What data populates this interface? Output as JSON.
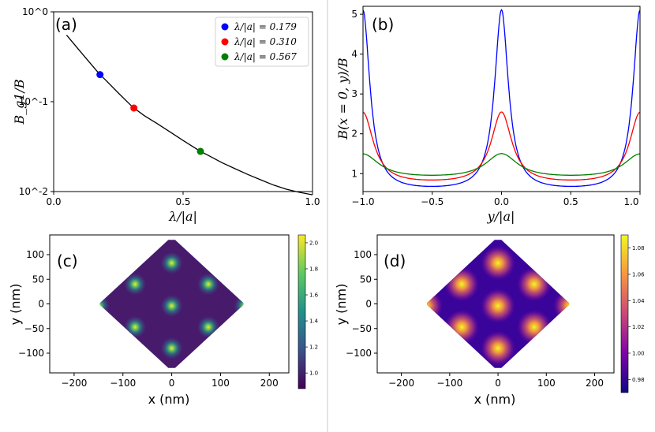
{
  "chart_data": [
    {
      "id": "a",
      "type": "line",
      "panel_label": "(a)",
      "xlabel": "λ/|a|",
      "ylabel": "B_g1/B",
      "yscale": "log",
      "xlim": [
        0.0,
        1.0
      ],
      "ylim": [
        0.01,
        1.0
      ],
      "xticks": [
        "0.0",
        "0.5",
        "1.0"
      ],
      "xtick_values": [
        0.0,
        0.5,
        1.0
      ],
      "yticks": [
        "10^0",
        "10^-1",
        "10^-2"
      ],
      "ytick_values": [
        1.0,
        0.1,
        0.01
      ],
      "curve": {
        "x": [
          0.05,
          0.1,
          0.15,
          0.179,
          0.2,
          0.25,
          0.3,
          0.31,
          0.35,
          0.4,
          0.45,
          0.5,
          0.567,
          0.6,
          0.65,
          0.7,
          0.75,
          0.8,
          0.85,
          0.9,
          0.95,
          1.0
        ],
        "y": [
          0.55,
          0.37,
          0.25,
          0.2,
          0.175,
          0.125,
          0.09,
          0.085,
          0.07,
          0.057,
          0.046,
          0.037,
          0.028,
          0.025,
          0.021,
          0.018,
          0.0155,
          0.0135,
          0.0118,
          0.0106,
          0.0098,
          0.0092
        ]
      },
      "points": [
        {
          "x": 0.179,
          "y": 0.2,
          "color": "#0000ff",
          "label": "λ/|a| = 0.179"
        },
        {
          "x": 0.31,
          "y": 0.085,
          "color": "#ff0000",
          "label": "λ/|a| = 0.310"
        },
        {
          "x": 0.567,
          "y": 0.028,
          "color": "#008000",
          "label": "λ/|a| = 0.567"
        }
      ]
    },
    {
      "id": "b",
      "type": "line",
      "panel_label": "(b)",
      "xlabel": "y/|a|",
      "ylabel": "B(x = 0, y)/B",
      "xlim": [
        -1.0,
        1.0
      ],
      "ylim": [
        0.55,
        5.2
      ],
      "xticks": [
        "−1.0",
        "−0.5",
        "0.0",
        "0.5",
        "1.0"
      ],
      "xtick_values": [
        -1.0,
        -0.5,
        0.0,
        0.5,
        1.0
      ],
      "yticks": [
        "1",
        "2",
        "3",
        "4",
        "5"
      ],
      "ytick_values": [
        1,
        2,
        3,
        4,
        5
      ],
      "series": [
        {
          "name": "λ/|a| = 0.179",
          "color": "#0000ff",
          "peak": 5.08,
          "min": 0.68,
          "width": 0.06
        },
        {
          "name": "λ/|a| = 0.310",
          "color": "#ff0000",
          "peak": 2.52,
          "min": 0.84,
          "width": 0.09
        },
        {
          "name": "λ/|a| = 0.567",
          "color": "#008000",
          "peak": 1.48,
          "min": 0.96,
          "width": 0.14
        }
      ]
    },
    {
      "id": "c",
      "type": "heatmap",
      "panel_label": "(c)",
      "colormap": "viridis",
      "xlabel": "x (nm)",
      "ylabel": "y (nm)",
      "xlim": [
        -250,
        240
      ],
      "ylim": [
        -140,
        140
      ],
      "xticks": [
        "−200",
        "−100",
        "0",
        "100",
        "200"
      ],
      "xtick_values": [
        -200,
        -100,
        0,
        100,
        200
      ],
      "yticks": [
        "100",
        "50",
        "0",
        "−50",
        "−100"
      ],
      "ytick_values": [
        100,
        50,
        0,
        -50,
        -100
      ],
      "colorbar_ticks": [
        "2.0",
        "1.8",
        "1.6",
        "1.4",
        "1.2",
        "1.0"
      ],
      "colorbar_values": [
        2.0,
        1.8,
        1.6,
        1.4,
        1.2,
        1.0
      ],
      "crange": [
        0.88,
        2.06
      ],
      "peaks": [
        [
          0,
          83
        ],
        [
          -75,
          40
        ],
        [
          75,
          40
        ],
        [
          -150,
          -4
        ],
        [
          0,
          -4
        ],
        [
          150,
          -4
        ],
        [
          -75,
          -47
        ],
        [
          75,
          -47
        ],
        [
          0,
          -90
        ]
      ]
    },
    {
      "id": "d",
      "type": "heatmap",
      "panel_label": "(d)",
      "colormap": "plasma",
      "xlabel": "x (nm)",
      "ylabel": "y (nm)",
      "xlim": [
        -250,
        240
      ],
      "ylim": [
        -140,
        140
      ],
      "xticks": [
        "−200",
        "−100",
        "0",
        "100",
        "200"
      ],
      "xtick_values": [
        -200,
        -100,
        0,
        100,
        200
      ],
      "yticks": [
        "100",
        "50",
        "0",
        "−50",
        "−100"
      ],
      "ytick_values": [
        100,
        50,
        0,
        -50,
        -100
      ],
      "colorbar_ticks": [
        "1.08",
        "1.06",
        "1.04",
        "1.02",
        "1.00",
        "0.98"
      ],
      "colorbar_values": [
        1.08,
        1.06,
        1.04,
        1.02,
        1.0,
        0.98
      ],
      "crange": [
        0.97,
        1.09
      ],
      "peaks": [
        [
          0,
          83
        ],
        [
          -75,
          40
        ],
        [
          75,
          40
        ],
        [
          -150,
          -4
        ],
        [
          0,
          -4
        ],
        [
          150,
          -4
        ],
        [
          -75,
          -47
        ],
        [
          75,
          -47
        ],
        [
          0,
          -90
        ]
      ]
    }
  ]
}
